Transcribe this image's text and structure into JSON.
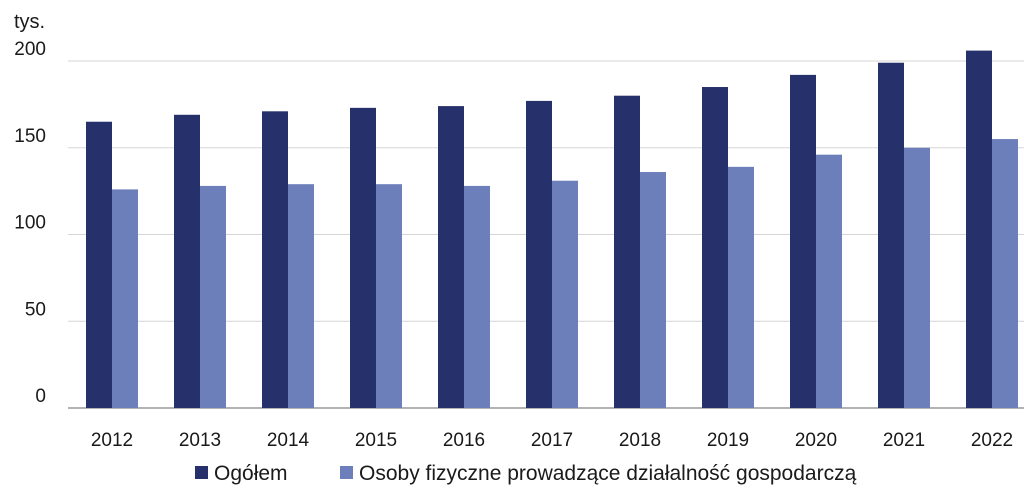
{
  "chart_data": {
    "type": "bar",
    "ylabel": "tys.",
    "categories": [
      "2012",
      "2013",
      "2014",
      "2015",
      "2016",
      "2017",
      "2018",
      "2019",
      "2020",
      "2021",
      "2022"
    ],
    "series": [
      {
        "name": "Ogółem",
        "color": "#26306a",
        "values": [
          165,
          169,
          171,
          173,
          174,
          177,
          180,
          185,
          192,
          199,
          206
        ]
      },
      {
        "name": "Osoby fizyczne prowadzące działalność gospodarczą",
        "color": "#6c7fba",
        "values": [
          126,
          128,
          129,
          129,
          128,
          131,
          136,
          139,
          146,
          150,
          155
        ]
      }
    ],
    "ylim": [
      0,
      200
    ],
    "yticks": [
      "0",
      "50",
      "100",
      "150",
      "200"
    ],
    "grid": true,
    "legend_position": "bottom"
  }
}
